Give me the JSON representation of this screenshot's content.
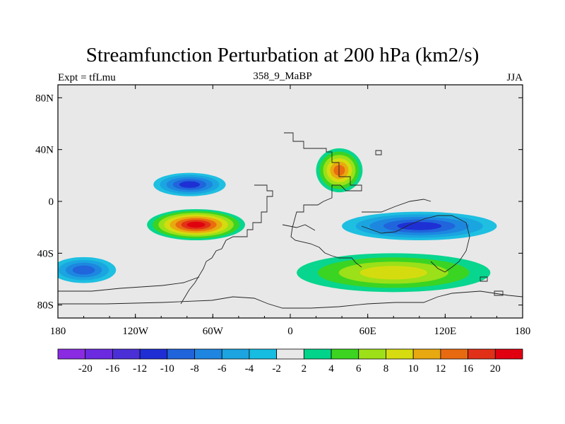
{
  "chart_data": {
    "type": "heatmap",
    "title": "Streamfunction Perturbation at 200 hPa (km2/s)",
    "subtitle_left": "Expt = tfLmu",
    "subtitle_center": "358_9_MaBP",
    "subtitle_right": "JJA",
    "xlim": [
      -180,
      180
    ],
    "ylim": [
      -90,
      90
    ],
    "x_ticks": [
      {
        "value": -180,
        "label": "180"
      },
      {
        "value": -120,
        "label": "120W"
      },
      {
        "value": -60,
        "label": "60W"
      },
      {
        "value": 0,
        "label": "0"
      },
      {
        "value": 60,
        "label": "60E"
      },
      {
        "value": 120,
        "label": "120E"
      },
      {
        "value": 180,
        "label": "180"
      }
    ],
    "y_ticks": [
      {
        "value": 80,
        "label": "80N"
      },
      {
        "value": 40,
        "label": "40N"
      },
      {
        "value": 0,
        "label": "0"
      },
      {
        "value": -40,
        "label": "40S"
      },
      {
        "value": -80,
        "label": "80S"
      }
    ],
    "colorbar": {
      "levels": [
        "-20",
        "-16",
        "-12",
        "-10",
        "-8",
        "-6",
        "-4",
        "-2",
        "2",
        "4",
        "6",
        "8",
        "10",
        "12",
        "16",
        "20"
      ],
      "colors": [
        "#8a2be2",
        "#6c2ae0",
        "#4b2fd6",
        "#1e2ed4",
        "#2064dc",
        "#1e86e0",
        "#1ba4e0",
        "#17bde0",
        "#e8e8e8",
        "#00d48a",
        "#3cd420",
        "#9ee018",
        "#d6dc10",
        "#e8a810",
        "#e86a10",
        "#e03018",
        "#e00010"
      ]
    },
    "features": [
      {
        "name": "low-north-atlantic",
        "lon": -78,
        "lat": 13,
        "rx": 28,
        "ry": 9,
        "peak": -10
      },
      {
        "name": "high-south-america",
        "lon": -73,
        "lat": -18,
        "rx": 38,
        "ry": 12,
        "peak": 20
      },
      {
        "name": "low-indian-ocean",
        "lon": 100,
        "lat": -19,
        "rx": 60,
        "ry": 11,
        "peak": -10
      },
      {
        "name": "high-east-africa",
        "lon": 38,
        "lat": 24,
        "rx": 18,
        "ry": 17,
        "peak": 12
      },
      {
        "name": "high-southern-ocean",
        "lon": 80,
        "lat": -55,
        "rx": 75,
        "ry": 15,
        "peak": 8
      },
      {
        "name": "low-south-pacific",
        "lon": -160,
        "lat": -53,
        "rx": 25,
        "ry": 10,
        "peak": -8
      }
    ]
  }
}
